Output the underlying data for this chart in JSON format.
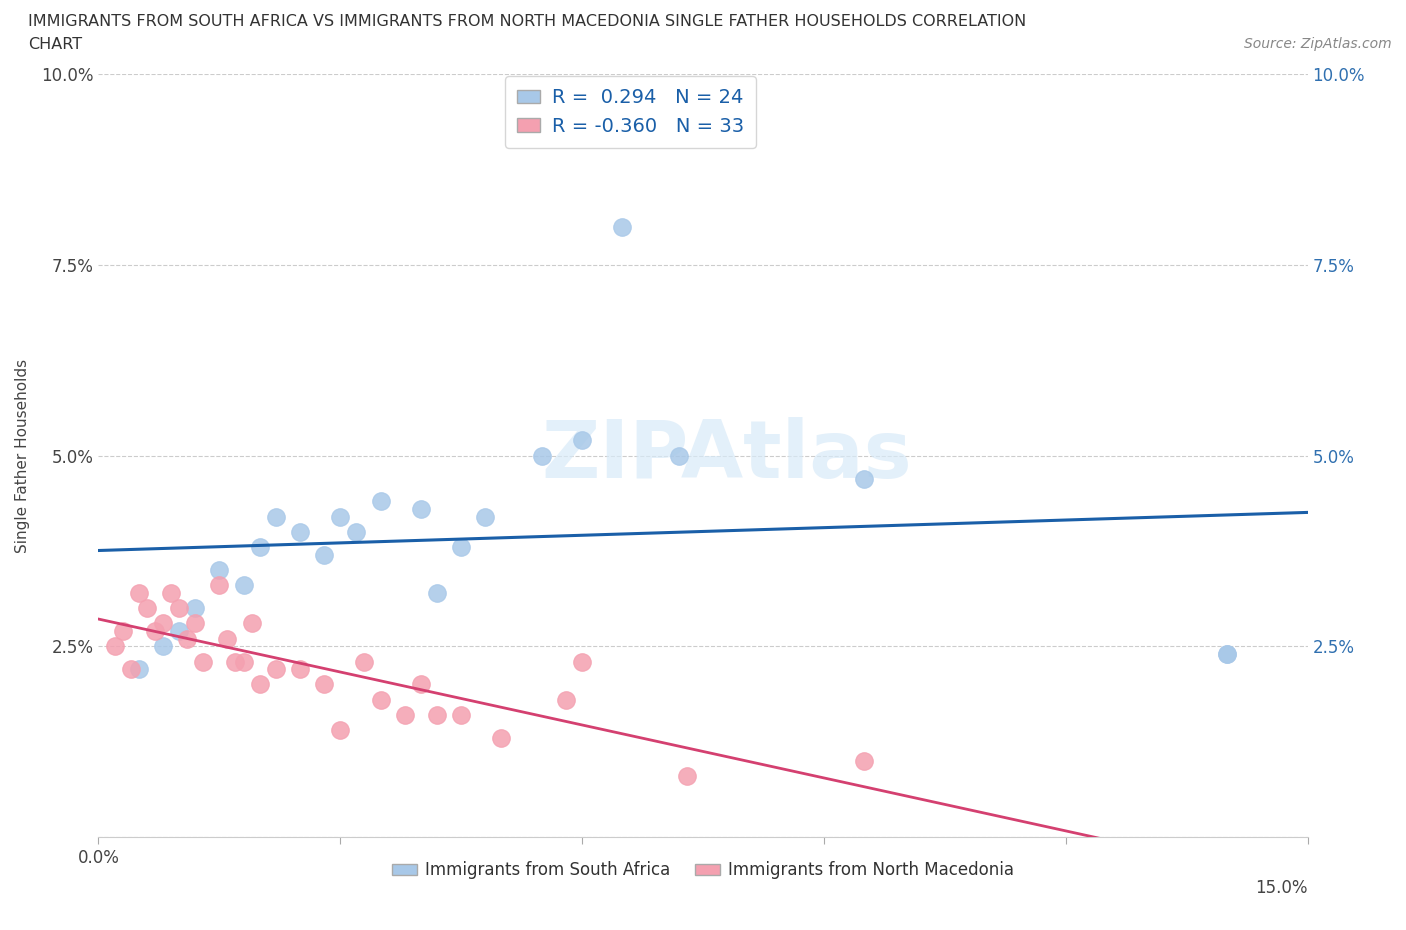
{
  "title_line1": "IMMIGRANTS FROM SOUTH AFRICA VS IMMIGRANTS FROM NORTH MACEDONIA SINGLE FATHER HOUSEHOLDS CORRELATION",
  "title_line2": "CHART",
  "source": "Source: ZipAtlas.com",
  "ylabel": "Single Father Households",
  "xlim": [
    0.0,
    0.15
  ],
  "ylim": [
    0.0,
    0.1
  ],
  "xticks": [
    0.0,
    0.03,
    0.06,
    0.09,
    0.12,
    0.15
  ],
  "xtick_labels": [
    "0.0%",
    "",
    "",
    "",
    "",
    "15.0%"
  ],
  "yticks": [
    0.0,
    0.025,
    0.05,
    0.075,
    0.1
  ],
  "ytick_labels_left": [
    "",
    "2.5%",
    "5.0%",
    "7.5%",
    "10.0%"
  ],
  "ytick_labels_right": [
    "",
    "2.5%",
    "5.0%",
    "7.5%",
    "10.0%"
  ],
  "R_blue": 0.294,
  "N_blue": 24,
  "R_pink": -0.36,
  "N_pink": 33,
  "blue_color": "#a8c8e8",
  "blue_line_color": "#1a5fa8",
  "pink_color": "#f4a0b0",
  "pink_line_color": "#d44070",
  "legend_blue_label": "Immigrants from South Africa",
  "legend_pink_label": "Immigrants from North Macedonia",
  "watermark": "ZIPAtlas",
  "blue_x": [
    0.005,
    0.008,
    0.01,
    0.012,
    0.015,
    0.018,
    0.02,
    0.022,
    0.025,
    0.028,
    0.03,
    0.032,
    0.035,
    0.04,
    0.042,
    0.045,
    0.048,
    0.055,
    0.06,
    0.065,
    0.072,
    0.095,
    0.14,
    0.14
  ],
  "blue_y": [
    0.022,
    0.025,
    0.027,
    0.03,
    0.035,
    0.033,
    0.038,
    0.042,
    0.04,
    0.037,
    0.042,
    0.04,
    0.044,
    0.043,
    0.032,
    0.038,
    0.042,
    0.05,
    0.052,
    0.08,
    0.05,
    0.047,
    0.024,
    0.024
  ],
  "pink_x": [
    0.002,
    0.003,
    0.004,
    0.005,
    0.006,
    0.007,
    0.008,
    0.009,
    0.01,
    0.011,
    0.012,
    0.013,
    0.015,
    0.016,
    0.017,
    0.018,
    0.019,
    0.02,
    0.022,
    0.025,
    0.028,
    0.03,
    0.033,
    0.035,
    0.038,
    0.04,
    0.042,
    0.045,
    0.05,
    0.058,
    0.06,
    0.073,
    0.095
  ],
  "pink_y": [
    0.025,
    0.027,
    0.022,
    0.032,
    0.03,
    0.027,
    0.028,
    0.032,
    0.03,
    0.026,
    0.028,
    0.023,
    0.033,
    0.026,
    0.023,
    0.023,
    0.028,
    0.02,
    0.022,
    0.022,
    0.02,
    0.014,
    0.023,
    0.018,
    0.016,
    0.02,
    0.016,
    0.016,
    0.013,
    0.018,
    0.023,
    0.008,
    0.01
  ]
}
